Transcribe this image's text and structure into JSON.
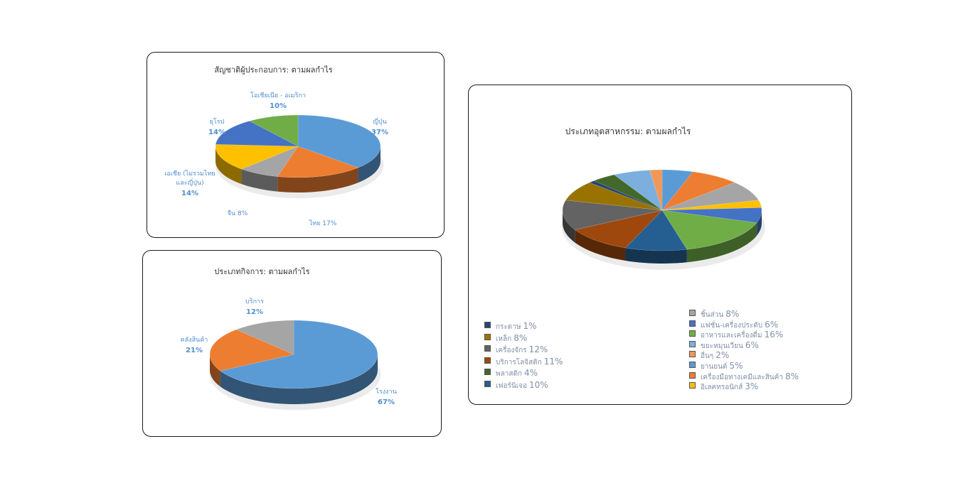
{
  "chart_data": [
    {
      "type": "pie",
      "title": "สัญชาติผู้ประกอบการ:  ตามผลกำไร",
      "slices": [
        {
          "name": "ญี่ปุ่น",
          "value": 37,
          "label": "37%",
          "color": "#5b9bd5"
        },
        {
          "name": "ไทย",
          "value": 17,
          "label": "17%",
          "color": "#ed7d31"
        },
        {
          "name": "จีน",
          "value": 8,
          "label": "8%",
          "color": "#a5a5a5"
        },
        {
          "name": "เอเชีย (ไม่รวมไทย และญี่ปุ่น)",
          "value": 14,
          "label": "14%",
          "color": "#ffc000"
        },
        {
          "name": "ยุโรป",
          "value": 14,
          "label": "14%",
          "color": "#4472c4"
        },
        {
          "name": "โอเชียเนีย - อเมริกา",
          "value": 10,
          "label": "10%",
          "color": "#70ad47"
        }
      ]
    },
    {
      "type": "pie",
      "title": "ประเภทกิจการ:  ตามผลกำไร",
      "slices": [
        {
          "name": "โรงงาน",
          "value": 67,
          "label": "67%",
          "color": "#5b9bd5"
        },
        {
          "name": "คลังสินค้า",
          "value": 21,
          "label": "21%",
          "color": "#ed7d31"
        },
        {
          "name": "บริการ",
          "value": 12,
          "label": "12%",
          "color": "#a5a5a5"
        }
      ]
    },
    {
      "type": "pie",
      "title": "ประเภทอุตสาหกรรม:  ตามผลกำไร",
      "slices": [
        {
          "name": "ยานยนต์",
          "value": 5,
          "label": "5%",
          "color": "#5b9bd5"
        },
        {
          "name": "เครื่องมือทางเคมีและสินค้า",
          "value": 8,
          "label": "8%",
          "color": "#ed7d31"
        },
        {
          "name": "ชิ้นส่วน",
          "value": 8,
          "label": "8%",
          "color": "#a5a5a5"
        },
        {
          "name": "อิเลคทรอนิกส์",
          "value": 3,
          "label": "3%",
          "color": "#ffc000"
        },
        {
          "name": "แฟชั่น-เครื่องประดับ",
          "value": 6,
          "label": "6%",
          "color": "#4472c4"
        },
        {
          "name": "อาหารและเครื่องดื่ม",
          "value": 16,
          "label": "16%",
          "color": "#70ad47"
        },
        {
          "name": "เฟอร์นิเจอ",
          "value": 10,
          "label": "10%",
          "color": "#255e91"
        },
        {
          "name": "บริการโลจิสติก",
          "value": 11,
          "label": "11%",
          "color": "#9e480e"
        },
        {
          "name": "เครื่องจักร",
          "value": 12,
          "label": "12%",
          "color": "#636363"
        },
        {
          "name": "เหล็ก",
          "value": 8,
          "label": "8%",
          "color": "#997300"
        },
        {
          "name": "กระดาษ",
          "value": 1,
          "label": "1%",
          "color": "#264478"
        },
        {
          "name": "พลาสติก",
          "value": 4,
          "label": "4%",
          "color": "#43682b"
        },
        {
          "name": "ขยะหมุนเวียน",
          "value": 6,
          "label": "6%",
          "color": "#7cafdd"
        },
        {
          "name": "อื่นๆ",
          "value": 2,
          "label": "2%",
          "color": "#f1975a"
        }
      ]
    }
  ]
}
